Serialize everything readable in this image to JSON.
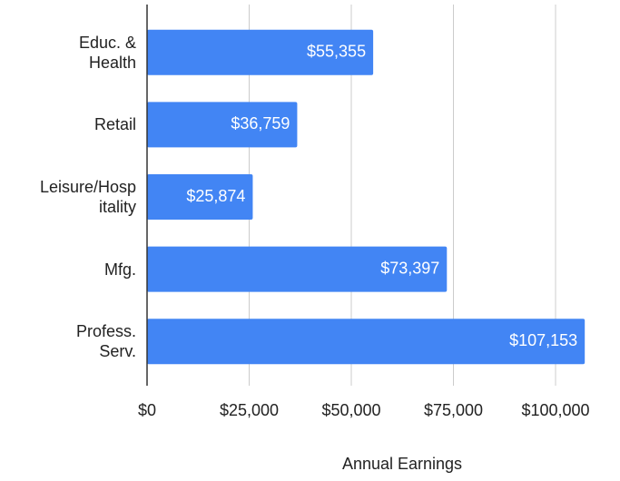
{
  "chart_data": {
    "type": "bar",
    "orientation": "horizontal",
    "categories": [
      "Educ. &\nHealth",
      "Retail",
      "Leisure/Hosp\nitality",
      "Mfg.",
      "Profess.\nServ."
    ],
    "values": [
      55355,
      36759,
      25874,
      73397,
      107153
    ],
    "value_labels": [
      "$55,355",
      "$36,759",
      "$25,874",
      "$73,397",
      "$107,153"
    ],
    "color": "#4285f4",
    "xlim": [
      0,
      110000
    ],
    "xticks": [
      {
        "value": 0,
        "label": "$0"
      },
      {
        "value": 25000,
        "label": "$25,000"
      },
      {
        "value": 50000,
        "label": "$50,000"
      },
      {
        "value": 75000,
        "label": "$75,000"
      },
      {
        "value": 100000,
        "label": "$100,000"
      }
    ],
    "xlabel": "Annual Earnings",
    "grid": true
  }
}
